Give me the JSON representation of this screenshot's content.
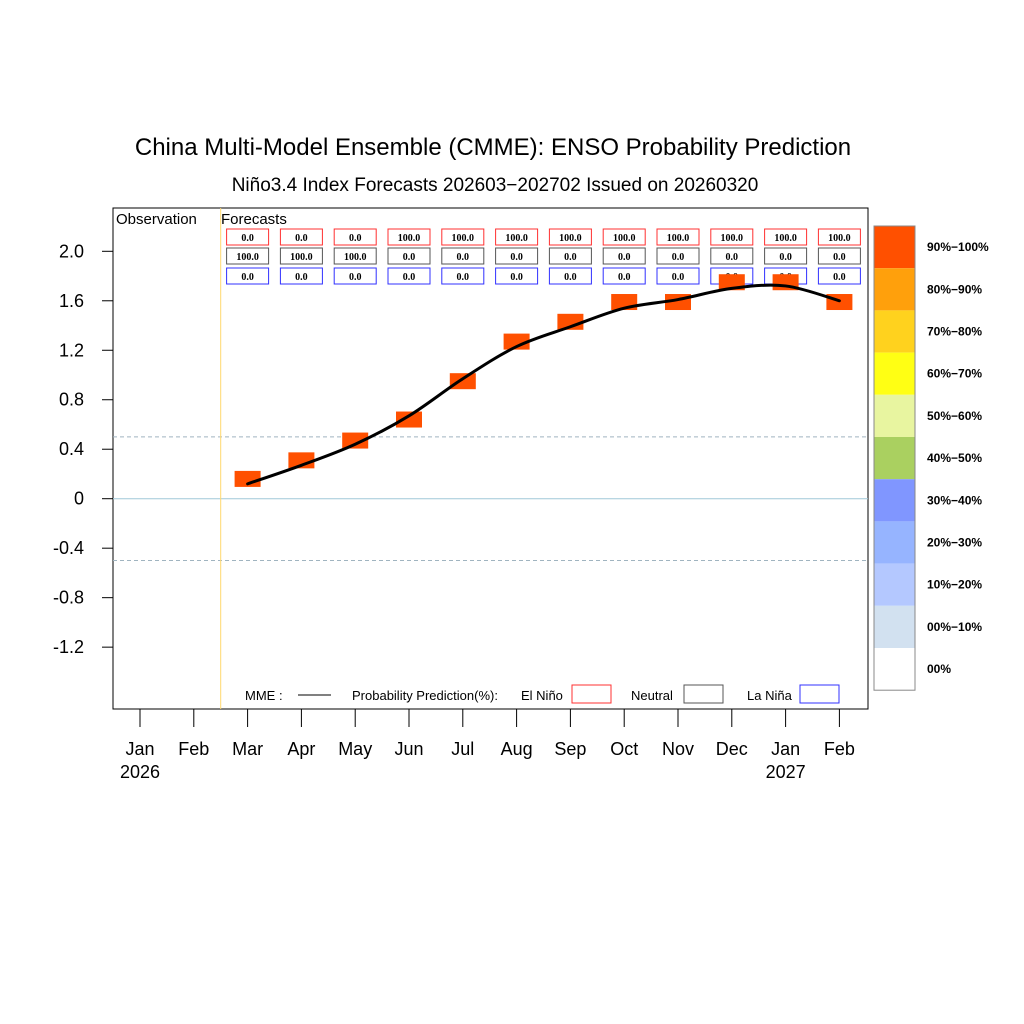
{
  "chart_data": {
    "type": "line",
    "title": "China Multi-Model Ensemble (CMME): ENSO Probability Prediction",
    "subtitle": "Niño3.4 Index Forecasts 202603−202702 Issued on 20260320",
    "section_labels": {
      "observation": "Observation",
      "forecasts": "Forecasts"
    },
    "x_months": [
      "Jan",
      "Feb",
      "Mar",
      "Apr",
      "May",
      "Jun",
      "Jul",
      "Aug",
      "Sep",
      "Oct",
      "Nov",
      "Dec",
      "Jan",
      "Feb"
    ],
    "x_years": [
      {
        "month_index": 0,
        "year": "2026"
      },
      {
        "month_index": 12,
        "year": "2027"
      }
    ],
    "ylim": [
      -1.7,
      2.35
    ],
    "y_ticks": [
      2.0,
      1.6,
      1.2,
      0.8,
      0.4,
      0,
      -0.4,
      -0.8,
      -1.2
    ],
    "y_tick_labels": [
      "2.0",
      "1.6",
      "1.2",
      "0.8",
      "0.4",
      "0",
      "-0.4",
      "-0.8",
      "-1.2"
    ],
    "thresholds": [
      0.5,
      -0.5
    ],
    "zero_line": 0,
    "forecast_start_index": 2,
    "mme_series": {
      "name": "MME",
      "month_index": [
        2,
        3,
        4,
        5,
        6,
        7,
        8,
        9,
        10,
        11,
        12,
        13
      ],
      "values": [
        0.12,
        0.27,
        0.44,
        0.67,
        0.97,
        1.23,
        1.39,
        1.54,
        1.61,
        1.7,
        1.72,
        1.6
      ]
    },
    "marker_series": {
      "name": "Probability markers",
      "month_index": [
        2,
        3,
        4,
        5,
        6,
        7,
        8,
        9,
        10,
        11,
        12,
        13
      ],
      "values": [
        0.16,
        0.31,
        0.47,
        0.64,
        0.95,
        1.27,
        1.43,
        1.59,
        1.59,
        1.75,
        1.75,
        1.59
      ],
      "category": [
        "Neutral",
        "Neutral",
        "Neutral",
        "El Niño",
        "El Niño",
        "El Niño",
        "El Niño",
        "El Niño",
        "El Niño",
        "El Niño",
        "El Niño",
        "El Niño"
      ],
      "probability": [
        100,
        100,
        100,
        100,
        100,
        100,
        100,
        100,
        100,
        100,
        100,
        100
      ]
    },
    "probability_table": {
      "el_nino": [
        "0.0",
        "0.0",
        "0.0",
        "100.0",
        "100.0",
        "100.0",
        "100.0",
        "100.0",
        "100.0",
        "100.0",
        "100.0",
        "100.0"
      ],
      "neutral": [
        "100.0",
        "100.0",
        "100.0",
        "0.0",
        "0.0",
        "0.0",
        "0.0",
        "0.0",
        "0.0",
        "0.0",
        "0.0",
        "0.0"
      ],
      "la_nina": [
        "0.0",
        "0.0",
        "0.0",
        "0.0",
        "0.0",
        "0.0",
        "0.0",
        "0.0",
        "0.0",
        "0.0",
        "0.0",
        "0.0"
      ]
    },
    "legend": {
      "mme_label": "MME :",
      "prob_label": "Probability Prediction(%):",
      "el_nino": "El Niño",
      "neutral": "Neutral",
      "la_nina": "La Niña",
      "placement": "bottom"
    },
    "colorbar": [
      {
        "label": "90%−100%",
        "color": "#ff5000"
      },
      {
        "label": "80%−90%",
        "color": "#ffa00c"
      },
      {
        "label": "70%−80%",
        "color": "#ffd21e"
      },
      {
        "label": "60%−70%",
        "color": "#ffff14"
      },
      {
        "label": "50%−60%",
        "color": "#e8f5a0"
      },
      {
        "label": "40%−50%",
        "color": "#aad060"
      },
      {
        "label": "30%−40%",
        "color": "#8096ff"
      },
      {
        "label": "20%−30%",
        "color": "#96b4ff"
      },
      {
        "label": "10%−20%",
        "color": "#b4c8ff"
      },
      {
        "label": "00%−10%",
        "color": "#d2e1f0"
      },
      {
        "label": "00%",
        "color": "#ffffff"
      }
    ],
    "colors": {
      "el_nino_box": "#ff3030",
      "neutral_box": "#555555",
      "la_nina_box": "#3030ff",
      "marker": "#ff5000",
      "line": "#000000",
      "forecast_divider": "#ffd86e",
      "threshold": "#a0b4c0",
      "zero": "#a0c8d8"
    }
  }
}
